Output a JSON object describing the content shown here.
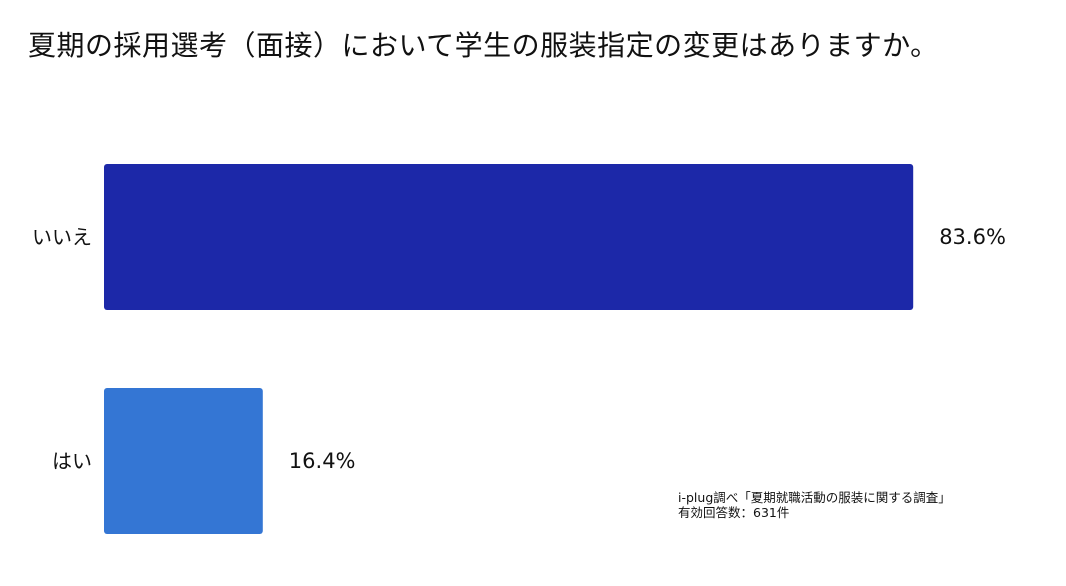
{
  "title": "夏期の採用選考（面接）において学生の服装指定の変更はありますか。",
  "source": {
    "line1": "i-plug調べ「夏期就職活動の服装に関する調査」",
    "line2": "有効回答数：631件"
  },
  "chart_data": {
    "type": "bar",
    "orientation": "horizontal",
    "categories": [
      "いいえ",
      "はい"
    ],
    "values": [
      83.6,
      16.4
    ],
    "value_labels": [
      "83.6%",
      "16.4%"
    ],
    "colors": [
      "#1c28a8",
      "#3476d4"
    ],
    "xlim": [
      0,
      100
    ],
    "title": "夏期の採用選考（面接）において学生の服装指定の変更はありますか。",
    "xlabel": "",
    "ylabel": "",
    "grid": false,
    "legend": "none"
  }
}
